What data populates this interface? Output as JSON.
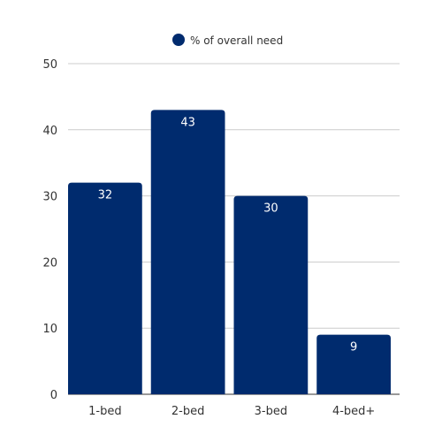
{
  "chart_data": {
    "type": "bar",
    "categories": [
      "1-bed",
      "2-bed",
      "3-bed",
      "4-bed+"
    ],
    "series": [
      {
        "name": "% of overall need",
        "values": [
          32,
          43,
          30,
          9
        ],
        "color": "#002b6e"
      }
    ],
    "ylim": [
      0,
      50
    ],
    "yticks": [
      0,
      10,
      20,
      30,
      40,
      50
    ],
    "grid": true,
    "legend_position": "top-center",
    "data_labels": true
  }
}
